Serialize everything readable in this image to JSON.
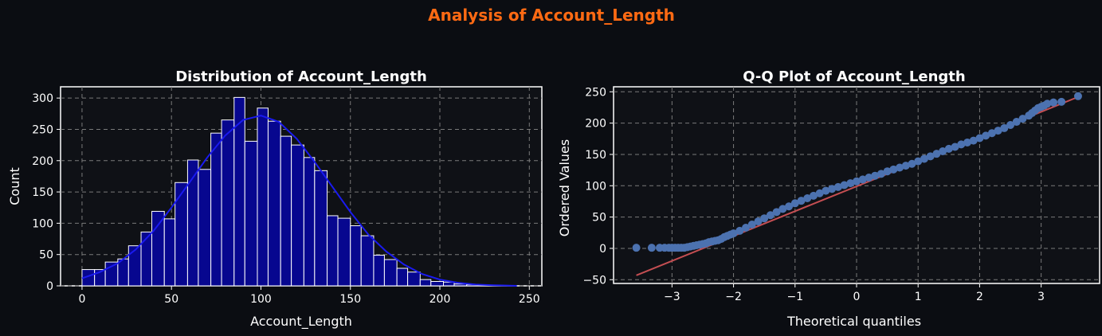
{
  "figure": {
    "title": "Analysis of Account_Length",
    "title_color": "#ff6a13",
    "background": "#0b0d12",
    "text_color": "#ffffff",
    "grid_color": "#7a7a7a"
  },
  "chart_data": [
    {
      "type": "bar",
      "title": "Distribution of Account_Length",
      "xlabel": "Account_Length",
      "ylabel": "Count",
      "xlim": [
        -12,
        257
      ],
      "ylim": [
        0,
        318
      ],
      "xticks": [
        0,
        50,
        100,
        150,
        200,
        250
      ],
      "yticks": [
        0,
        50,
        100,
        150,
        200,
        250,
        300
      ],
      "grid": true,
      "bin_edges": [
        0,
        7,
        13,
        20,
        26,
        33,
        39,
        46,
        52,
        59,
        65,
        72,
        78,
        85,
        91,
        98,
        104,
        111,
        117,
        124,
        130,
        137,
        143,
        150,
        156,
        163,
        169,
        176,
        182,
        189,
        195,
        202,
        208,
        215,
        221,
        228,
        234,
        241,
        247
      ],
      "counts": [
        26,
        26,
        38,
        43,
        64,
        86,
        119,
        107,
        165,
        201,
        186,
        244,
        265,
        301,
        231,
        284,
        263,
        239,
        225,
        205,
        184,
        112,
        108,
        96,
        80,
        49,
        42,
        28,
        22,
        10,
        7,
        6,
        3,
        2,
        1,
        1,
        0,
        0
      ],
      "bar_color": "#07078f",
      "edge_color": "#ffffff",
      "kde": {
        "x": [
          0,
          10,
          20,
          30,
          40,
          50,
          60,
          70,
          80,
          90,
          100,
          110,
          120,
          130,
          140,
          150,
          160,
          170,
          180,
          190,
          200,
          210,
          220,
          230,
          243
        ],
        "y": [
          12,
          22,
          36,
          58,
          88,
          125,
          165,
          205,
          240,
          265,
          272,
          262,
          235,
          198,
          158,
          118,
          82,
          55,
          34,
          19,
          10,
          5,
          2,
          1,
          0
        ],
        "color": "#1a1af0"
      }
    },
    {
      "type": "scatter",
      "title": "Q-Q Plot of Account_Length",
      "xlabel": "Theoretical quantiles",
      "ylabel": "Ordered Values",
      "xlim": [
        -3.95,
        3.95
      ],
      "ylim": [
        -56,
        258
      ],
      "xticks": [
        -3,
        -2,
        -1,
        0,
        1,
        2,
        3
      ],
      "yticks": [
        -50,
        0,
        50,
        100,
        150,
        200,
        250
      ],
      "grid": true,
      "points": {
        "x": [
          -3.58,
          -3.33,
          -3.2,
          -3.12,
          -3.05,
          -3.0,
          -2.95,
          -2.9,
          -2.85,
          -2.8,
          -2.75,
          -2.7,
          -2.65,
          -2.6,
          -2.55,
          -2.5,
          -2.45,
          -2.4,
          -2.35,
          -2.3,
          -2.25,
          -2.2,
          -2.15,
          -2.1,
          -2.05,
          -2.0,
          -1.9,
          -1.8,
          -1.7,
          -1.6,
          -1.5,
          -1.4,
          -1.3,
          -1.2,
          -1.1,
          -1.0,
          -0.9,
          -0.8,
          -0.7,
          -0.6,
          -0.5,
          -0.4,
          -0.3,
          -0.2,
          -0.1,
          0.0,
          0.1,
          0.2,
          0.3,
          0.4,
          0.5,
          0.6,
          0.7,
          0.8,
          0.9,
          1.0,
          1.1,
          1.2,
          1.3,
          1.4,
          1.5,
          1.6,
          1.7,
          1.8,
          1.9,
          2.0,
          2.1,
          2.2,
          2.3,
          2.4,
          2.5,
          2.6,
          2.7,
          2.8,
          2.85,
          2.9,
          2.95,
          3.0,
          3.05,
          3.1,
          3.2,
          3.33,
          3.6
        ],
        "y": [
          1,
          1,
          1,
          1,
          1,
          1,
          1,
          1,
          1,
          1,
          2,
          3,
          4,
          5,
          6,
          7,
          8,
          10,
          11,
          12,
          13,
          15,
          18,
          20,
          22,
          24,
          28,
          33,
          38,
          43,
          48,
          53,
          58,
          63,
          67,
          72,
          76,
          80,
          84,
          88,
          92,
          95,
          98,
          101,
          104,
          107,
          110,
          113,
          116,
          119,
          123,
          126,
          129,
          132,
          135,
          139,
          143,
          147,
          151,
          155,
          159,
          162,
          166,
          169,
          172,
          176,
          180,
          184,
          188,
          192,
          197,
          202,
          207,
          212,
          216,
          220,
          224,
          226,
          228,
          231,
          233,
          234,
          243
        ],
        "color": "#4c72b0"
      },
      "fit_line": {
        "x": [
          -3.58,
          3.58
        ],
        "y": [
          -43,
          241
        ],
        "color": "#c44e52"
      }
    }
  ]
}
